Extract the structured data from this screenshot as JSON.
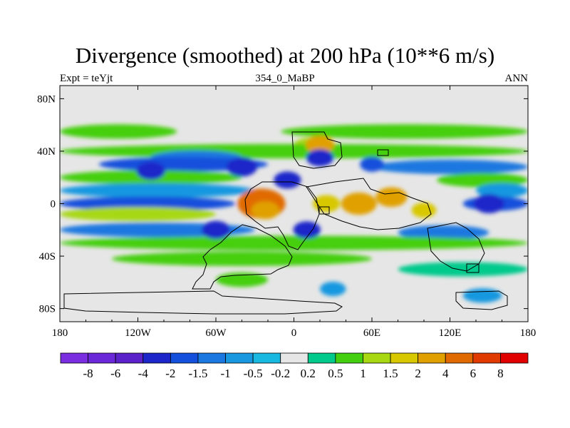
{
  "chart_data": {
    "type": "heatmap",
    "title": "Divergence (smoothed) at 200 hPa (10**6 m/s)",
    "subtitle_left": "Expt = teYjt",
    "subtitle_center": "354_0_MaBP",
    "subtitle_right": "ANN",
    "xlim": [
      -180,
      180
    ],
    "ylim": [
      -90,
      90
    ],
    "x_ticks": [
      {
        "value": -180,
        "label": "180"
      },
      {
        "value": -120,
        "label": "120W"
      },
      {
        "value": -60,
        "label": "60W"
      },
      {
        "value": 0,
        "label": "0"
      },
      {
        "value": 60,
        "label": "60E"
      },
      {
        "value": 120,
        "label": "120E"
      },
      {
        "value": 180,
        "label": "180"
      }
    ],
    "y_ticks": [
      {
        "value": 80,
        "label": "80N"
      },
      {
        "value": 40,
        "label": "40N"
      },
      {
        "value": 0,
        "label": "0"
      },
      {
        "value": -40,
        "label": "40S"
      },
      {
        "value": -80,
        "label": "80S"
      }
    ],
    "colorbar": {
      "colors": [
        "#7b2ee0",
        "#6a28d8",
        "#5a22c8",
        "#1d27c9",
        "#1450dc",
        "#1a78e0",
        "#1998e0",
        "#19b8e0",
        "#e6e6e6",
        "#00c98c",
        "#44cf10",
        "#a7d812",
        "#d8c800",
        "#e0a000",
        "#e06a00",
        "#e03a00",
        "#e00000"
      ],
      "labels": [
        "-8",
        "-6",
        "-4",
        "-2",
        "-1.5",
        "-1",
        "-0.5",
        "-0.2",
        "0.2",
        "0.5",
        "1",
        "1.5",
        "2",
        "4",
        "6",
        "8"
      ]
    },
    "bands": [
      {
        "lat": 55,
        "lon0": -180,
        "lon1": -90,
        "value": 0.6
      },
      {
        "lat": 55,
        "lon0": -10,
        "lon1": 180,
        "value": 0.7
      },
      {
        "lat": 45,
        "lon0": 0,
        "lon1": 30,
        "value": 1.5
      },
      {
        "lat": 40,
        "lon0": -180,
        "lon1": 180,
        "value": 0.6
      },
      {
        "lat": 35,
        "lon0": -110,
        "lon1": -40,
        "value": -1.2
      },
      {
        "lat": 30,
        "lon0": -150,
        "lon1": -20,
        "value": -1.6
      },
      {
        "lat": 28,
        "lon0": 60,
        "lon1": 180,
        "value": -1.0
      },
      {
        "lat": 20,
        "lon0": -180,
        "lon1": -40,
        "value": 0.7
      },
      {
        "lat": 18,
        "lon0": 110,
        "lon1": 180,
        "value": 0.8
      },
      {
        "lat": 10,
        "lon0": -180,
        "lon1": -30,
        "value": -0.8
      },
      {
        "lat": 10,
        "lon0": 140,
        "lon1": 180,
        "value": -0.8
      },
      {
        "lat": 0,
        "lon0": -180,
        "lon1": -45,
        "value": -1.5
      },
      {
        "lat": 0,
        "lon0": 130,
        "lon1": 180,
        "value": -1.7
      },
      {
        "lat": -8,
        "lon0": -180,
        "lon1": -60,
        "value": 1.2
      },
      {
        "lat": -20,
        "lon0": -180,
        "lon1": -30,
        "value": -1.3
      },
      {
        "lat": -22,
        "lon0": 80,
        "lon1": 150,
        "value": -1.0
      },
      {
        "lat": -30,
        "lon0": -180,
        "lon1": 180,
        "value": 0.6
      },
      {
        "lat": -42,
        "lon0": -140,
        "lon1": 60,
        "value": 0.7
      },
      {
        "lat": -50,
        "lon0": 80,
        "lon1": 180,
        "value": 0.5
      },
      {
        "lat": -58,
        "lon0": -60,
        "lon1": -20,
        "value": 0.6
      },
      {
        "lat": -65,
        "lon0": 20,
        "lon1": 40,
        "value": -0.6
      },
      {
        "lat": -70,
        "lon0": 130,
        "lon1": 160,
        "value": -0.6
      }
    ],
    "blobs": [
      {
        "lon": -25,
        "lat": 0,
        "value": 5.0
      },
      {
        "lon": -22,
        "lat": -5,
        "value": 2.2
      },
      {
        "lon": 50,
        "lat": 0,
        "value": 3.2
      },
      {
        "lon": 75,
        "lat": 5,
        "value": 2.6
      },
      {
        "lon": 25,
        "lat": 0,
        "value": 2.0
      },
      {
        "lon": 100,
        "lat": -5,
        "value": 1.6
      },
      {
        "lon": 20,
        "lat": 45,
        "value": 2.2
      },
      {
        "lon": -5,
        "lat": 18,
        "value": -2.0
      },
      {
        "lon": -40,
        "lat": 28,
        "value": -2.5
      },
      {
        "lon": -110,
        "lat": 25,
        "value": -2.2
      },
      {
        "lon": -60,
        "lat": -20,
        "value": -2.2
      },
      {
        "lon": 10,
        "lat": -20,
        "value": -2.0
      },
      {
        "lon": 150,
        "lat": 0,
        "value": -2.5
      },
      {
        "lon": 20,
        "lat": 35,
        "value": -2.0
      },
      {
        "lon": 60,
        "lat": 30,
        "value": -1.5
      }
    ]
  }
}
